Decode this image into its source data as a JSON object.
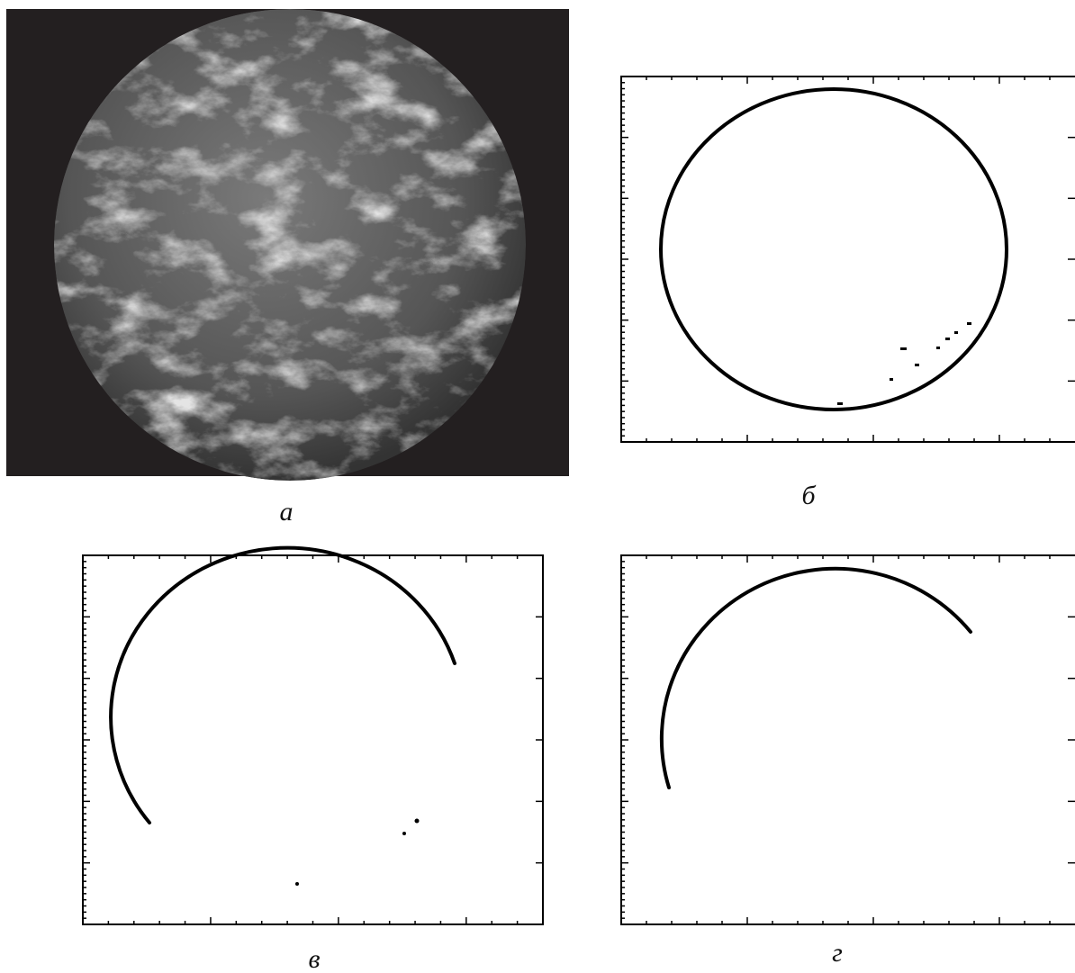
{
  "panels": [
    {
      "label": "а"
    },
    {
      "label": "б"
    },
    {
      "label": "в"
    },
    {
      "label": "г"
    }
  ]
}
